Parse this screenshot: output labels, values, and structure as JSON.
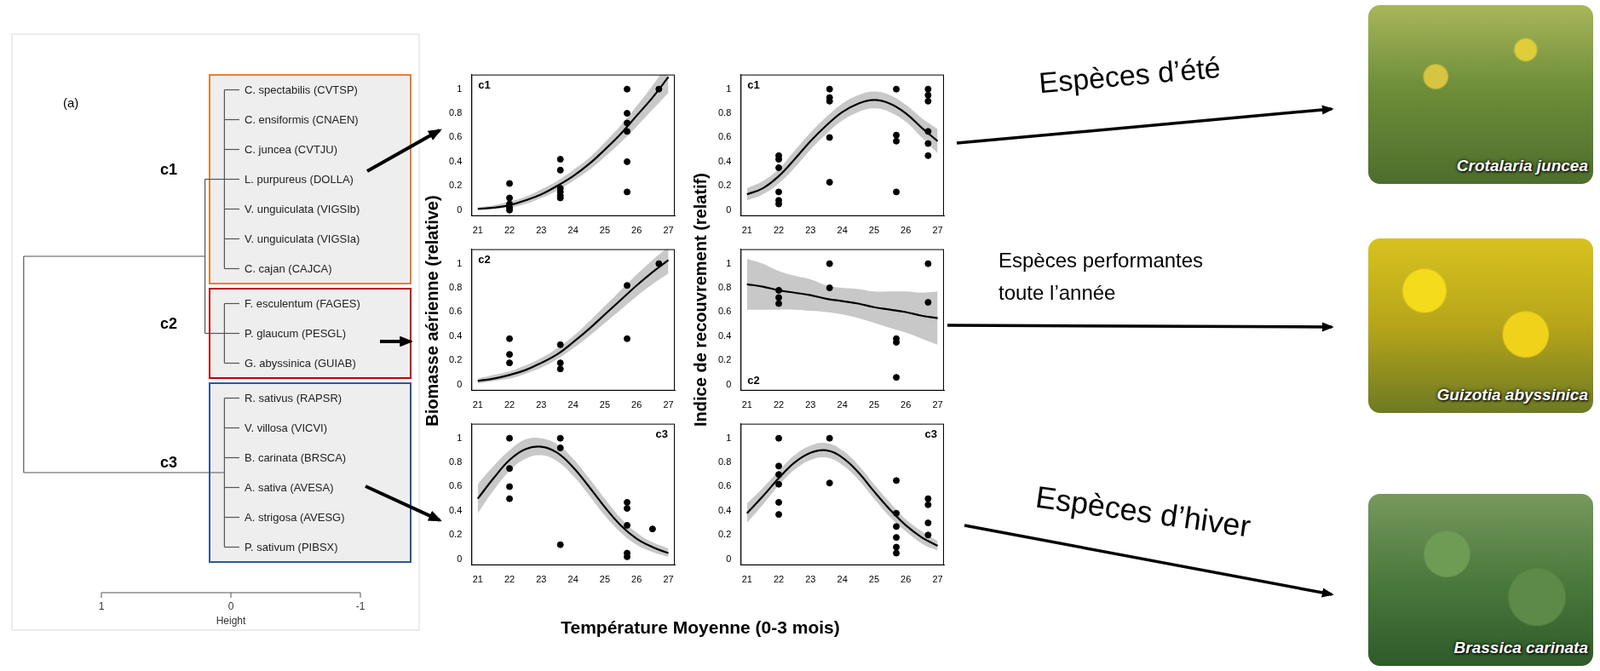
{
  "dendrogram": {
    "label": "(a)",
    "height_label": "Height",
    "height_ticks": [
      1,
      0,
      -1
    ],
    "join_heights": [
      0.2,
      1.6
    ],
    "clusters": [
      {
        "name": "c1",
        "color": "#ed7d31",
        "height": 0.05,
        "species": [
          "C. spectabilis (CVTSP)",
          "C. ensiformis (CNAEN)",
          "C. juncea (CVTJU)",
          "L. purpureus (DOLLA)",
          "V. unguiculata (VIGSIb)",
          "V. unguiculata (VIGSIa)",
          "C. cajan (CAJCA)"
        ]
      },
      {
        "name": "c2",
        "color": "#c00000",
        "height": 0.05,
        "species": [
          "F. esculentum (FAGES)",
          "P. glaucum (PESGL)",
          "G. abyssinica (GUIAB)"
        ]
      },
      {
        "name": "c3",
        "color": "#2f5597",
        "height": 0.05,
        "species": [
          "R. sativus (RAPSR)",
          "V. villosa (VICVI)",
          "B. carinata (BRSCA)",
          "A. sativa (AVESA)",
          "A. strigosa (AVESG)",
          "P. sativum (PIBSX)"
        ]
      }
    ]
  },
  "axis_titles": {
    "left": "Biomasse aérienne (relative)",
    "right": "Indice de recouvrement (relatif)",
    "bottom": "Température Moyenne (0-3 mois)"
  },
  "chart_data": [
    {
      "type": "scatter",
      "title": "c1",
      "grid": false,
      "xlim": [
        20.8,
        27.2
      ],
      "xticks": [
        21,
        22,
        23,
        24,
        25,
        26,
        27
      ],
      "ylim": [
        -0.05,
        1.12
      ],
      "yticks": [
        0,
        0.2,
        0.4,
        0.6,
        0.8,
        1
      ],
      "series": [
        {
          "type": "scatter",
          "color": "#000000",
          "marker": "circle",
          "x": [
            22,
            22,
            22,
            22,
            22,
            23.6,
            23.6,
            23.6,
            23.6,
            23.6,
            23.6,
            25.7,
            25.7,
            25.7,
            25.7,
            25.7,
            25.7,
            26.7
          ],
          "values": [
            0.22,
            0.1,
            0.05,
            0.02,
            0.0,
            0.42,
            0.33,
            0.18,
            0.15,
            0.12,
            0.1,
            1.0,
            0.8,
            0.72,
            0.65,
            0.4,
            0.15,
            1.0
          ]
        },
        {
          "type": "line",
          "color": "#000000",
          "line_style": "solid",
          "x": [
            21,
            21.5,
            22,
            22.5,
            23,
            23.5,
            24,
            24.5,
            25,
            25.5,
            26,
            26.5,
            27
          ],
          "values": [
            0.01,
            0.02,
            0.04,
            0.08,
            0.13,
            0.2,
            0.28,
            0.38,
            0.5,
            0.63,
            0.78,
            0.93,
            1.1
          ],
          "lower": [
            0,
            0.01,
            0.02,
            0.05,
            0.1,
            0.16,
            0.24,
            0.33,
            0.44,
            0.56,
            0.69,
            0.83,
            0.97
          ],
          "upper": [
            0.02,
            0.04,
            0.07,
            0.11,
            0.17,
            0.24,
            0.33,
            0.43,
            0.56,
            0.7,
            0.86,
            1.03,
            1.22
          ]
        }
      ]
    },
    {
      "type": "scatter",
      "title": "c1",
      "grid": false,
      "xlim": [
        20.8,
        27.2
      ],
      "xticks": [
        21,
        22,
        23,
        24,
        25,
        26,
        27
      ],
      "ylim": [
        -0.05,
        1.12
      ],
      "yticks": [
        0,
        0.2,
        0.4,
        0.6,
        0.8,
        1
      ],
      "series": [
        {
          "type": "scatter",
          "color": "#000000",
          "marker": "circle",
          "x": [
            22,
            22,
            22,
            22,
            22,
            22,
            23.6,
            23.6,
            23.6,
            23.6,
            23.6,
            25.7,
            25.7,
            25.7,
            25.7,
            26.7,
            26.7,
            26.7,
            26.7,
            26.7,
            26.7
          ],
          "values": [
            0.45,
            0.42,
            0.35,
            0.15,
            0.08,
            0.05,
            1.0,
            0.93,
            0.9,
            0.6,
            0.23,
            1.0,
            0.62,
            0.57,
            0.15,
            1.0,
            0.95,
            0.9,
            0.65,
            0.55,
            0.45
          ]
        },
        {
          "type": "line",
          "color": "#000000",
          "line_style": "solid",
          "x": [
            21,
            21.5,
            22,
            22.5,
            23,
            23.5,
            24,
            24.5,
            25,
            25.5,
            26,
            26.5,
            27
          ],
          "values": [
            0.13,
            0.18,
            0.28,
            0.42,
            0.57,
            0.7,
            0.81,
            0.88,
            0.91,
            0.88,
            0.8,
            0.68,
            0.57
          ],
          "lower": [
            0.08,
            0.13,
            0.22,
            0.35,
            0.5,
            0.63,
            0.74,
            0.81,
            0.84,
            0.81,
            0.73,
            0.6,
            0.47
          ],
          "upper": [
            0.18,
            0.24,
            0.34,
            0.49,
            0.64,
            0.77,
            0.88,
            0.95,
            0.98,
            0.95,
            0.87,
            0.76,
            0.67
          ]
        }
      ]
    },
    {
      "type": "scatter",
      "title": "c2",
      "grid": false,
      "xlim": [
        20.8,
        27.2
      ],
      "xticks": [
        21,
        22,
        23,
        24,
        25,
        26,
        27
      ],
      "ylim": [
        -0.05,
        1.12
      ],
      "yticks": [
        0,
        0.2,
        0.4,
        0.6,
        0.8,
        1
      ],
      "series": [
        {
          "type": "scatter",
          "color": "#000000",
          "marker": "circle",
          "x": [
            22,
            22,
            22,
            23.6,
            23.6,
            23.6,
            25.7,
            25.7,
            26.7
          ],
          "values": [
            0.38,
            0.25,
            0.18,
            0.33,
            0.18,
            0.13,
            0.82,
            0.38,
            1.0
          ]
        },
        {
          "type": "line",
          "color": "#000000",
          "line_style": "solid",
          "x": [
            21,
            21.5,
            22,
            22.5,
            23,
            23.5,
            24,
            24.5,
            25,
            25.5,
            26,
            26.5,
            27
          ],
          "values": [
            0.03,
            0.05,
            0.08,
            0.12,
            0.18,
            0.25,
            0.35,
            0.46,
            0.58,
            0.7,
            0.82,
            0.93,
            1.03
          ],
          "lower": [
            0.01,
            0.03,
            0.05,
            0.09,
            0.14,
            0.21,
            0.3,
            0.4,
            0.51,
            0.62,
            0.73,
            0.83,
            0.92
          ],
          "upper": [
            0.05,
            0.08,
            0.11,
            0.16,
            0.22,
            0.3,
            0.4,
            0.52,
            0.65,
            0.78,
            0.91,
            1.03,
            1.14
          ]
        }
      ]
    },
    {
      "type": "scatter",
      "title": "c2",
      "grid": false,
      "xlim": [
        20.8,
        27.2
      ],
      "xticks": [
        21,
        22,
        23,
        24,
        25,
        26,
        27
      ],
      "ylim": [
        -0.05,
        1.12
      ],
      "yticks": [
        0,
        0.2,
        0.4,
        0.6,
        0.8,
        1
      ],
      "series": [
        {
          "type": "scatter",
          "color": "#000000",
          "marker": "circle",
          "x": [
            22,
            22,
            22,
            23.6,
            23.6,
            25.7,
            25.7,
            25.7,
            26.7,
            26.7
          ],
          "values": [
            0.78,
            0.72,
            0.67,
            1.0,
            0.8,
            0.38,
            0.35,
            0.06,
            1.0,
            0.68
          ]
        },
        {
          "type": "line",
          "color": "#000000",
          "line_style": "solid",
          "x": [
            21,
            21.5,
            22,
            22.5,
            23,
            23.5,
            24,
            24.5,
            25,
            25.5,
            26,
            26.5,
            27
          ],
          "values": [
            0.83,
            0.81,
            0.78,
            0.76,
            0.74,
            0.71,
            0.69,
            0.67,
            0.64,
            0.62,
            0.6,
            0.57,
            0.55
          ],
          "lower": [
            0.62,
            0.62,
            0.62,
            0.62,
            0.61,
            0.6,
            0.58,
            0.55,
            0.51,
            0.47,
            0.43,
            0.38,
            0.33
          ],
          "upper": [
            1.04,
            1.0,
            0.94,
            0.9,
            0.87,
            0.82,
            0.8,
            0.79,
            0.77,
            0.77,
            0.77,
            0.76,
            0.77
          ]
        }
      ]
    },
    {
      "type": "scatter",
      "title": "c3",
      "grid": false,
      "xlim": [
        20.8,
        27.2
      ],
      "xticks": [
        21,
        22,
        23,
        24,
        25,
        26,
        27
      ],
      "ylim": [
        -0.05,
        1.12
      ],
      "yticks": [
        0,
        0.2,
        0.4,
        0.6,
        0.8,
        1
      ],
      "series": [
        {
          "type": "scatter",
          "color": "#000000",
          "marker": "circle",
          "x": [
            22,
            22,
            22,
            22,
            23.6,
            23.6,
            23.6,
            25.7,
            25.7,
            25.7,
            25.7,
            25.7,
            26.5
          ],
          "values": [
            1.0,
            0.75,
            0.6,
            0.5,
            1.0,
            0.92,
            0.12,
            0.47,
            0.42,
            0.28,
            0.05,
            0.02,
            0.25
          ]
        },
        {
          "type": "line",
          "color": "#000000",
          "line_style": "solid",
          "x": [
            21,
            21.5,
            22,
            22.5,
            23,
            23.5,
            24,
            24.5,
            25,
            25.5,
            26,
            26.5,
            27
          ],
          "values": [
            0.5,
            0.67,
            0.82,
            0.91,
            0.93,
            0.88,
            0.76,
            0.6,
            0.43,
            0.28,
            0.17,
            0.1,
            0.05
          ],
          "lower": [
            0.38,
            0.57,
            0.73,
            0.83,
            0.86,
            0.81,
            0.69,
            0.53,
            0.36,
            0.22,
            0.12,
            0.06,
            0.02
          ],
          "upper": [
            0.62,
            0.77,
            0.9,
            0.99,
            1.0,
            0.95,
            0.83,
            0.67,
            0.5,
            0.34,
            0.22,
            0.14,
            0.09
          ]
        }
      ]
    },
    {
      "type": "scatter",
      "title": "c3",
      "grid": false,
      "xlim": [
        20.8,
        27.2
      ],
      "xticks": [
        21,
        22,
        23,
        24,
        25,
        26,
        27
      ],
      "ylim": [
        -0.05,
        1.12
      ],
      "yticks": [
        0,
        0.2,
        0.4,
        0.6,
        0.8,
        1
      ],
      "series": [
        {
          "type": "scatter",
          "color": "#000000",
          "marker": "circle",
          "x": [
            22,
            22,
            22,
            22,
            22,
            22,
            23.6,
            23.6,
            25.7,
            25.7,
            25.7,
            25.7,
            25.7,
            25.7,
            26.7,
            26.7,
            26.7,
            26.7
          ],
          "values": [
            1.0,
            0.77,
            0.7,
            0.62,
            0.47,
            0.37,
            1.0,
            0.63,
            0.65,
            0.38,
            0.27,
            0.18,
            0.1,
            0.05,
            0.5,
            0.45,
            0.3,
            0.2
          ]
        },
        {
          "type": "line",
          "color": "#000000",
          "line_style": "solid",
          "x": [
            21,
            21.5,
            22,
            22.5,
            23,
            23.5,
            24,
            24.5,
            25,
            25.5,
            26,
            26.5,
            27
          ],
          "values": [
            0.38,
            0.52,
            0.67,
            0.8,
            0.88,
            0.9,
            0.84,
            0.72,
            0.56,
            0.41,
            0.28,
            0.18,
            0.11
          ],
          "lower": [
            0.3,
            0.45,
            0.61,
            0.74,
            0.82,
            0.84,
            0.78,
            0.66,
            0.5,
            0.35,
            0.23,
            0.13,
            0.07
          ],
          "upper": [
            0.46,
            0.59,
            0.73,
            0.86,
            0.94,
            0.96,
            0.9,
            0.78,
            0.62,
            0.47,
            0.33,
            0.23,
            0.15
          ]
        }
      ]
    }
  ],
  "annotations": [
    {
      "lines": [
        "Espèces d’été"
      ]
    },
    {
      "lines": [
        "Espèces performantes",
        "toute l’année"
      ]
    },
    {
      "lines": [
        "Espèces d’hiver"
      ]
    }
  ],
  "photos": [
    {
      "caption": "Crotalaria juncea"
    },
    {
      "caption": "Guizotia abyssinica"
    },
    {
      "caption": "Brassica carinata"
    }
  ]
}
